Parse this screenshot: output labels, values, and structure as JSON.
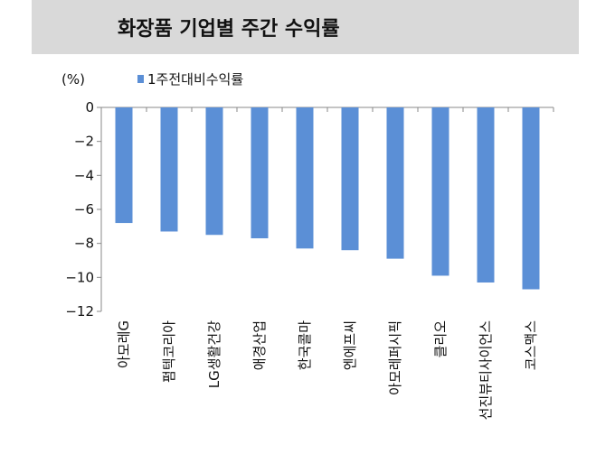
{
  "header": {
    "title": "화장품 기업별 주간 수익률"
  },
  "chart_data": {
    "type": "bar",
    "title": "화장품 기업별 주간 수익률",
    "unit_label": "(%)",
    "legend": [
      "1주전대비수익률"
    ],
    "categories": [
      "아모레G",
      "펌텍코리아",
      "LG생활건강",
      "애경산업",
      "한국콜마",
      "엔에프씨",
      "아모레퍼시픽",
      "클리오",
      "선진뷰티사이언스",
      "코스맥스"
    ],
    "series": [
      {
        "name": "1주전대비수익률",
        "values": [
          -6.8,
          -7.3,
          -7.5,
          -7.7,
          -8.3,
          -8.4,
          -8.9,
          -9.9,
          -10.3,
          -10.7
        ]
      }
    ],
    "ylim": [
      -12,
      0
    ],
    "yticks": [
      0,
      -2,
      -4,
      -6,
      -8,
      -10,
      -12
    ],
    "bar_color": "#5b8fd6",
    "grid": false,
    "legend_position": "top-left"
  }
}
